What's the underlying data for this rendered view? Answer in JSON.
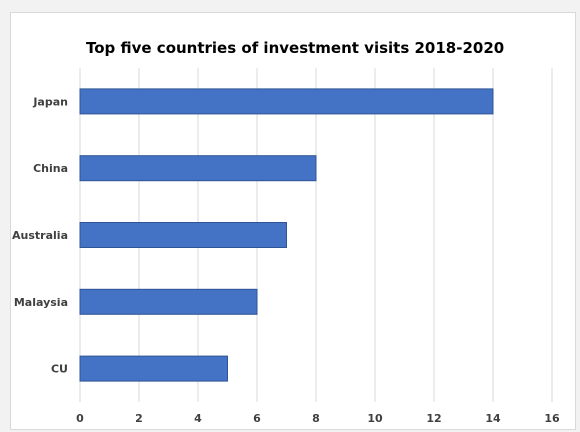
{
  "chart_data": {
    "type": "bar",
    "orientation": "horizontal",
    "title": "Top five countries of investment visits 2018-2020",
    "xlabel": "",
    "ylabel": "",
    "categories": [
      "Japan",
      "China",
      "Australia",
      "Malaysia",
      "CU"
    ],
    "values": [
      14,
      8,
      7,
      6,
      5
    ],
    "xlim": [
      0,
      16
    ],
    "x_ticks": [
      "0",
      "2",
      "4",
      "6",
      "8",
      "10",
      "12",
      "14",
      "16"
    ],
    "grid": "vertical",
    "legend": "none",
    "bar_color": "#4472c4",
    "bar_edge_color": "#2f5597"
  }
}
